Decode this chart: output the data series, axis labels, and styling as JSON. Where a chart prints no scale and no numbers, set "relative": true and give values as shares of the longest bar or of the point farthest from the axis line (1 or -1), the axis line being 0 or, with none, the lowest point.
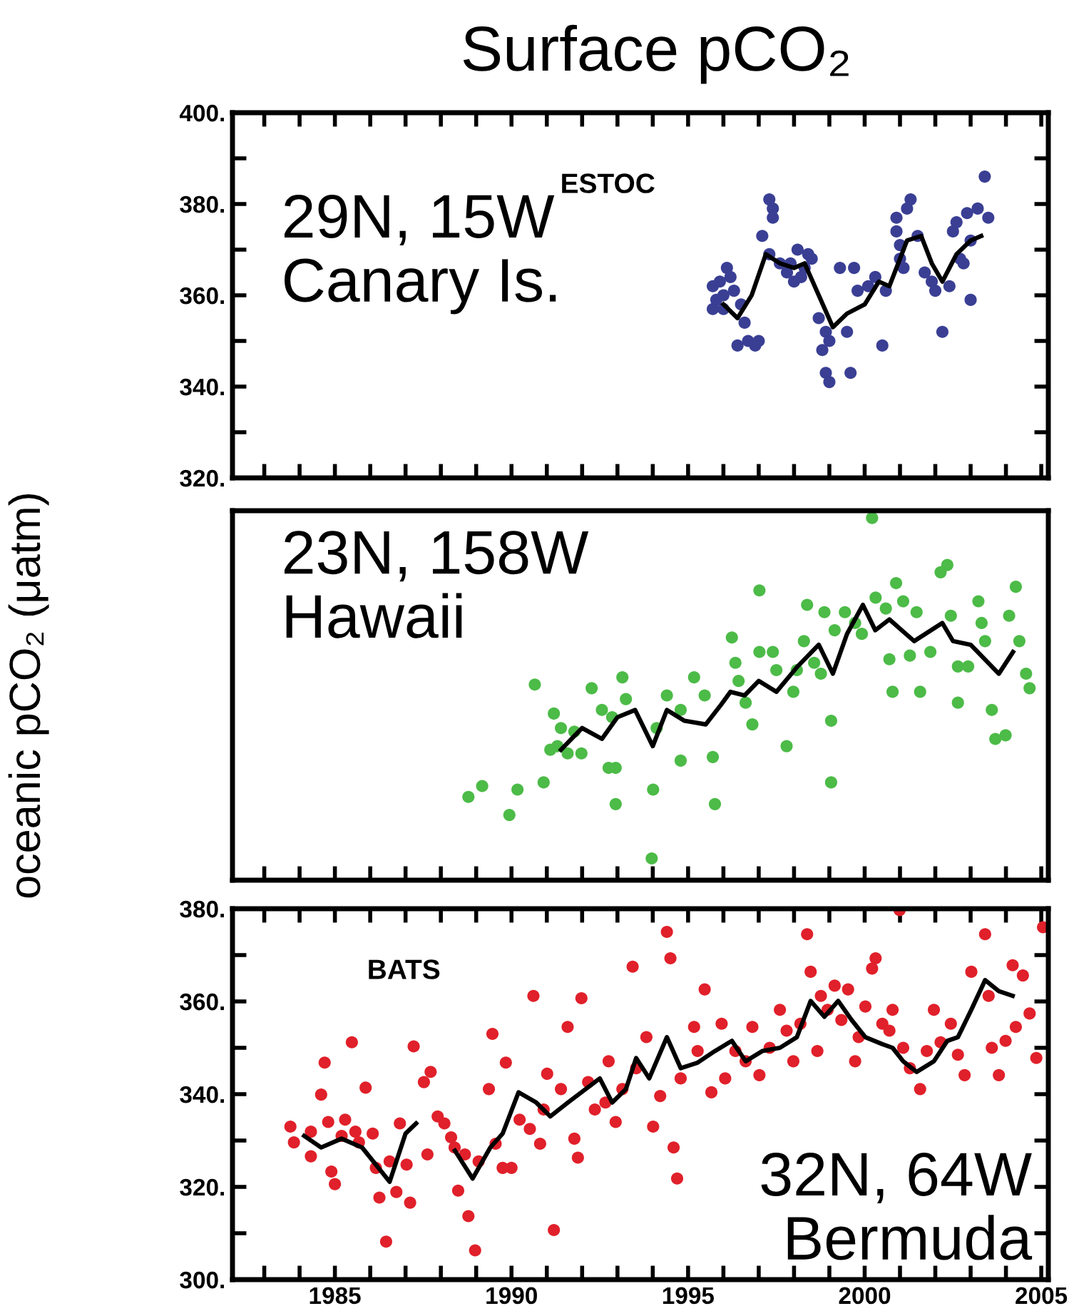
{
  "chart_data": [
    {
      "type": "scatter",
      "title": "Surface pCO₂",
      "annotations": [
        "29N, 15W\nCanary Is.",
        "ESTOC"
      ],
      "tick_labels": "y",
      "grid": false,
      "xlim": [
        1982.1,
        2005.2
      ],
      "xticks": [
        {
          "value": 1983,
          "label": null
        },
        {
          "value": 1984,
          "label": null
        },
        {
          "value": 1985,
          "label": null
        },
        {
          "value": 1986,
          "label": null
        },
        {
          "value": 1987,
          "label": null
        },
        {
          "value": 1988,
          "label": null
        },
        {
          "value": 1989,
          "label": null
        },
        {
          "value": 1990,
          "label": null
        },
        {
          "value": 1991,
          "label": null
        },
        {
          "value": 1992,
          "label": null
        },
        {
          "value": 1993,
          "label": null
        },
        {
          "value": 1994,
          "label": null
        },
        {
          "value": 1995,
          "label": null
        },
        {
          "value": 1996,
          "label": null
        },
        {
          "value": 1997,
          "label": null
        },
        {
          "value": 1998,
          "label": null
        },
        {
          "value": 1999,
          "label": null
        },
        {
          "value": 2000,
          "label": null
        },
        {
          "value": 2001,
          "label": null
        },
        {
          "value": 2002,
          "label": null
        },
        {
          "value": 2003,
          "label": null
        },
        {
          "value": 2004,
          "label": null
        },
        {
          "value": 2005,
          "label": null
        }
      ],
      "ylim": [
        320,
        400
      ],
      "yticks": [
        {
          "value": 320,
          "label": "320."
        },
        {
          "value": 330,
          "label": null
        },
        {
          "value": 340,
          "label": "340."
        },
        {
          "value": 350,
          "label": null
        },
        {
          "value": 360,
          "label": "360."
        },
        {
          "value": 370,
          "label": null
        },
        {
          "value": 380,
          "label": "380."
        },
        {
          "value": 390,
          "label": null
        },
        {
          "value": 400,
          "label": "400."
        }
      ],
      "series": [
        {
          "marker": "circle",
          "color": "#3a3f94",
          "x": [
            1995.7,
            1995.8,
            1995.7,
            1995.9,
            1996.0,
            1996.1,
            1996.0,
            1996.2,
            1996.3,
            1996.5,
            1996.4,
            1996.6,
            1996.7,
            1996.9,
            1997.0,
            1997.1,
            1997.3,
            1997.3,
            1997.4,
            1997.4,
            1997.6,
            1997.8,
            1997.9,
            1998.0,
            1998.1,
            1998.2,
            1998.3,
            1998.5,
            1998.4,
            1998.7,
            1998.9,
            1998.8,
            1999.0,
            1998.9,
            1999.0,
            1999.3,
            1999.5,
            1999.6,
            1999.7,
            1999.8,
            2000.1,
            2000.3,
            2000.5,
            2000.6,
            2000.9,
            2000.9,
            2001.0,
            2001.0,
            2001.2,
            2001.3,
            2001.1,
            2001.5,
            2001.7,
            2001.9,
            2002.0,
            2002.2,
            2002.4,
            2002.5,
            2002.6,
            2002.7,
            2002.8,
            2002.9,
            2003.0,
            2003.2,
            2003.0,
            2003.4,
            2003.5
          ],
          "values": [
            362,
            359,
            357,
            363,
            360,
            366,
            357,
            364,
            361,
            358,
            349,
            354,
            350,
            349,
            350,
            373,
            369,
            381,
            379,
            377,
            367,
            365,
            367,
            363,
            370,
            364,
            366,
            368,
            369,
            355,
            352,
            348,
            350,
            343,
            341,
            366,
            352,
            343,
            366,
            361,
            362,
            364,
            349,
            361,
            377,
            374,
            371,
            368,
            379,
            381,
            366,
            373,
            365,
            363,
            361,
            352,
            362,
            374,
            376,
            368,
            367,
            378,
            372,
            379,
            359,
            386,
            377
          ]
        },
        {
          "type": "line",
          "color": "#000000",
          "x": [
            1996.0,
            1996.4,
            1996.8,
            1997.2,
            1997.6,
            1998.0,
            1998.3,
            1998.7,
            1999.1,
            1999.5,
            2000.0,
            2000.4,
            2000.7,
            2001.2,
            2001.6,
            2001.9,
            2002.2,
            2002.6,
            2003.0,
            2003.3
          ],
          "values": [
            358,
            355,
            360,
            369,
            367,
            366,
            367,
            360,
            353,
            356,
            358,
            363,
            362,
            372,
            373,
            367,
            363,
            369,
            372,
            373
          ]
        }
      ]
    },
    {
      "type": "scatter",
      "ylabel": "oceanic pCO₂ (μatm)",
      "annotations": [
        "23N, 158W\nHawaii"
      ],
      "tick_labels": false,
      "relative": true,
      "grid": false,
      "xlim": [
        1982.1,
        2005.2
      ],
      "xticks": [
        {
          "value": 1983,
          "label": null
        },
        {
          "value": 1984,
          "label": null
        },
        {
          "value": 1985,
          "label": null
        },
        {
          "value": 1986,
          "label": null
        },
        {
          "value": 1987,
          "label": null
        },
        {
          "value": 1988,
          "label": null
        },
        {
          "value": 1989,
          "label": null
        },
        {
          "value": 1990,
          "label": null
        },
        {
          "value": 1991,
          "label": null
        },
        {
          "value": 1992,
          "label": null
        },
        {
          "value": 1993,
          "label": null
        },
        {
          "value": 1994,
          "label": null
        },
        {
          "value": 1995,
          "label": null
        },
        {
          "value": 1996,
          "label": null
        },
        {
          "value": 1997,
          "label": null
        },
        {
          "value": 1998,
          "label": null
        },
        {
          "value": 1999,
          "label": null
        },
        {
          "value": 2000,
          "label": null
        },
        {
          "value": 2001,
          "label": null
        },
        {
          "value": 2002,
          "label": null
        },
        {
          "value": 2003,
          "label": null
        },
        {
          "value": 2004,
          "label": null
        },
        {
          "value": 2005,
          "label": null
        }
      ],
      "series": [
        {
          "marker": "circle",
          "color": "#4cbb47",
          "x": [
            1988.78,
            1989.94,
            1990.17,
            1990.91,
            1989.17,
            1990.66,
            1991.2,
            1991.4,
            1991.3,
            1991.1,
            1991.59,
            1991.78,
            1991.98,
            1992.27,
            1992.56,
            1992.85,
            1992.95,
            1993.14,
            1993.24,
            1992.75,
            1992.95,
            1994.01,
            1993.97,
            1994.11,
            1994.4,
            1994.79,
            1994.79,
            1995.17,
            1995.47,
            1995.7,
            1995.76,
            1996.24,
            1996.34,
            1996.43,
            1996.63,
            1996.82,
            1997.02,
            1997.4,
            1997.5,
            1997.79,
            1997.98,
            1998.08,
            1998.28,
            1998.57,
            1998.76,
            1999.05,
            1999.05,
            1997.02,
            1998.37,
            1998.86,
            1999.15,
            1999.44,
            1999.73,
            1999.92,
            2000.21,
            2000.31,
            2000.6,
            2000.89,
            2001.09,
            2001.47,
            2000.7,
            2000.79,
            2001.28,
            2001.57,
            2001.86,
            2002.15,
            2002.34,
            2002.44,
            2002.64,
            2002.64,
            2002.93,
            2003.22,
            2003.31,
            2003.41,
            2003.6,
            2003.7,
            2003.99,
            2004.09,
            2004.28,
            2004.38,
            2004.57,
            2004.67
          ],
          "values": [
            0.23,
            0.18,
            0.25,
            0.27,
            0.26,
            0.54,
            0.46,
            0.42,
            0.37,
            0.36,
            0.35,
            0.41,
            0.35,
            0.53,
            0.47,
            0.45,
            0.31,
            0.56,
            0.5,
            0.31,
            0.21,
            0.25,
            0.06,
            0.42,
            0.51,
            0.47,
            0.33,
            0.56,
            0.51,
            0.34,
            0.21,
            0.67,
            0.6,
            0.55,
            0.49,
            0.43,
            0.63,
            0.63,
            0.58,
            0.37,
            0.52,
            0.58,
            0.66,
            0.6,
            0.57,
            0.44,
            0.27,
            0.8,
            0.76,
            0.74,
            0.69,
            0.74,
            0.71,
            0.68,
            1.0,
            0.78,
            0.75,
            0.82,
            0.77,
            0.74,
            0.61,
            0.52,
            0.62,
            0.52,
            0.63,
            0.85,
            0.87,
            0.73,
            0.59,
            0.49,
            0.59,
            0.77,
            0.71,
            0.66,
            0.47,
            0.39,
            0.4,
            0.73,
            0.81,
            0.66,
            0.57,
            0.53
          ]
        },
        {
          "type": "line",
          "color": "#000000",
          "x": [
            1991.4,
            1992.0,
            1992.56,
            1993.0,
            1993.5,
            1994.0,
            1994.4,
            1994.9,
            1995.5,
            1995.9,
            1996.2,
            1996.6,
            1997.0,
            1997.5,
            1998.1,
            1998.7,
            1999.1,
            1999.5,
            1999.95,
            2000.3,
            2000.7,
            2001.4,
            2002.2,
            2002.5,
            2003.0,
            2003.8,
            2004.2
          ],
          "values": [
            0.36,
            0.42,
            0.39,
            0.45,
            0.47,
            0.37,
            0.47,
            0.44,
            0.43,
            0.48,
            0.52,
            0.51,
            0.55,
            0.52,
            0.59,
            0.65,
            0.57,
            0.68,
            0.76,
            0.69,
            0.72,
            0.66,
            0.71,
            0.66,
            0.65,
            0.57,
            0.63
          ]
        }
      ]
    },
    {
      "type": "scatter",
      "annotations": [
        "32N, 64W\nBermuda",
        "BATS"
      ],
      "grid": false,
      "xlim": [
        1982.1,
        2005.2
      ],
      "xticks": [
        {
          "value": 1983,
          "label": null
        },
        {
          "value": 1984,
          "label": null
        },
        1985,
        {
          "value": 1986,
          "label": null
        },
        {
          "value": 1987,
          "label": null
        },
        {
          "value": 1988,
          "label": null
        },
        {
          "value": 1989,
          "label": null
        },
        1990,
        {
          "value": 1991,
          "label": null
        },
        {
          "value": 1992,
          "label": null
        },
        {
          "value": 1993,
          "label": null
        },
        {
          "value": 1994,
          "label": null
        },
        1995,
        {
          "value": 1996,
          "label": null
        },
        {
          "value": 1997,
          "label": null
        },
        {
          "value": 1998,
          "label": null
        },
        {
          "value": 1999,
          "label": null
        },
        2000,
        {
          "value": 2001,
          "label": null
        },
        {
          "value": 2002,
          "label": null
        },
        {
          "value": 2003,
          "label": null
        },
        {
          "value": 2004,
          "label": null
        },
        2005
      ],
      "ylim": [
        300,
        380
      ],
      "yticks": [
        {
          "value": 300,
          "label": "300."
        },
        {
          "value": 310,
          "label": null
        },
        {
          "value": 320,
          "label": "320."
        },
        {
          "value": 330,
          "label": null
        },
        {
          "value": 340,
          "label": "340."
        },
        {
          "value": 350,
          "label": null
        },
        {
          "value": 360,
          "label": "360."
        },
        {
          "value": 370,
          "label": null
        },
        {
          "value": 380,
          "label": "380."
        }
      ],
      "series": [
        {
          "marker": "circle",
          "color": "#e0202a",
          "x": [
            1983.74,
            1983.84,
            1984.32,
            1984.32,
            1984.61,
            1984.71,
            1984.81,
            1984.9,
            1985.0,
            1985.19,
            1985.29,
            1985.48,
            1985.58,
            1985.68,
            1985.87,
            1986.07,
            1986.16,
            1986.26,
            1986.45,
            1986.55,
            1986.74,
            1986.84,
            1987.03,
            1987.13,
            1987.23,
            1987.52,
            1987.71,
            1987.62,
            1987.91,
            1988.1,
            1988.29,
            1988.39,
            1988.49,
            1988.68,
            1988.78,
            1988.97,
            1989.07,
            1989.36,
            1989.46,
            1989.55,
            1989.75,
            1989.84,
            1990.0,
            1990.23,
            1990.52,
            1990.62,
            1990.81,
            1990.91,
            1991.01,
            1991.2,
            1991.4,
            1991.59,
            1991.78,
            1991.88,
            1991.98,
            1992.17,
            1992.36,
            1992.66,
            1992.75,
            1992.95,
            1993.14,
            1993.43,
            1993.53,
            1993.82,
            1994.01,
            1994.21,
            1994.4,
            1994.5,
            1994.59,
            1994.69,
            1994.79,
            1995.17,
            1995.27,
            1995.47,
            1995.66,
            1995.95,
            1996.05,
            1996.34,
            1996.63,
            1996.82,
            1997.02,
            1997.31,
            1997.6,
            1997.79,
            1997.98,
            1998.18,
            1998.37,
            1998.47,
            1998.66,
            1998.76,
            1998.95,
            1999.15,
            1999.34,
            1999.53,
            1999.73,
            1999.83,
            2000.02,
            2000.21,
            2000.31,
            2000.5,
            2000.7,
            2000.79,
            2000.99,
            2001.09,
            2001.28,
            2001.57,
            2001.76,
            2001.96,
            2002.15,
            2002.44,
            2002.64,
            2002.83,
            2003.02,
            2003.41,
            2003.51,
            2003.6,
            2003.8,
            2003.99,
            2004.19,
            2004.28,
            2004.48,
            2004.67,
            2004.86,
            2005.05
          ],
          "values": [
            333.0,
            329.6,
            331.9,
            326.6,
            339.9,
            346.8,
            334.0,
            323.3,
            320.6,
            331.0,
            334.5,
            351.2,
            331.9,
            329.6,
            341.4,
            331.5,
            324.1,
            317.7,
            308.2,
            325.5,
            318.9,
            333.7,
            324.8,
            316.6,
            350.3,
            342.6,
            344.8,
            327.0,
            335.2,
            333.7,
            330.7,
            328.5,
            319.2,
            327.0,
            313.7,
            306.3,
            325.5,
            341.1,
            353.0,
            329.3,
            324.1,
            346.8,
            324.1,
            334.5,
            332.5,
            361.2,
            329.3,
            336.7,
            344.4,
            310.7,
            341.1,
            354.5,
            330.4,
            326.3,
            360.7,
            342.6,
            336.7,
            338.2,
            347.1,
            334.0,
            341.1,
            367.5,
            345.6,
            352.3,
            333.0,
            339.6,
            375.0,
            369.3,
            328.5,
            321.8,
            343.4,
            354.5,
            349.3,
            362.6,
            340.4,
            355.2,
            343.4,
            349.3,
            347.1,
            354.5,
            344.1,
            350.0,
            358.2,
            353.7,
            347.1,
            355.2,
            374.5,
            366.4,
            349.3,
            361.2,
            358.2,
            363.4,
            356.0,
            362.6,
            347.1,
            352.3,
            358.9,
            367.1,
            369.3,
            355.2,
            353.7,
            358.2,
            379.7,
            350.0,
            345.6,
            341.1,
            349.3,
            358.2,
            351.2,
            355.2,
            348.5,
            344.1,
            366.4,
            374.5,
            361.2,
            350.0,
            344.1,
            351.5,
            367.8,
            354.5,
            365.6,
            357.4,
            347.8,
            376.0
          ]
        },
        {
          "type": "line",
          "color": "#000000",
          "x": [
            1984.13,
            1984.61,
            1985.19,
            1985.77,
            1986.55,
            1987.0,
            1987.3,
            1988.0,
            1988.4,
            1988.9,
            1989.4,
            1989.75,
            1990.2,
            1990.7,
            1991.1,
            1991.6,
            1992.1,
            1992.5,
            1992.85,
            1993.24,
            1993.53,
            1993.9,
            1994.4,
            1994.79,
            1995.27,
            1995.76,
            1996.24,
            1996.63,
            1997.1,
            1997.6,
            1998.08,
            1998.47,
            1998.86,
            1999.25,
            1999.63,
            2000.02,
            2000.5,
            2000.79,
            2001.09,
            2001.47,
            2001.96,
            2002.34,
            2002.64,
            2003.02,
            2003.41,
            2003.8,
            2004.19
          ],
          "values": [
            331.0,
            328.5,
            330.4,
            328.5,
            321.1,
            331.5,
            333.7,
            null,
            327.8,
            321.8,
            328.5,
            331.5,
            340.4,
            338.2,
            335.2,
            338.2,
            341.1,
            343.4,
            338.2,
            341.1,
            347.8,
            343.4,
            352.3,
            345.6,
            346.8,
            349.3,
            351.5,
            347.1,
            349.3,
            350.0,
            352.3,
            360.1,
            356.7,
            360.1,
            356.0,
            352.3,
            350.8,
            350.0,
            347.1,
            344.8,
            347.1,
            351.5,
            352.3,
            358.2,
            364.6,
            362.2,
            361.2
          ]
        }
      ]
    }
  ]
}
